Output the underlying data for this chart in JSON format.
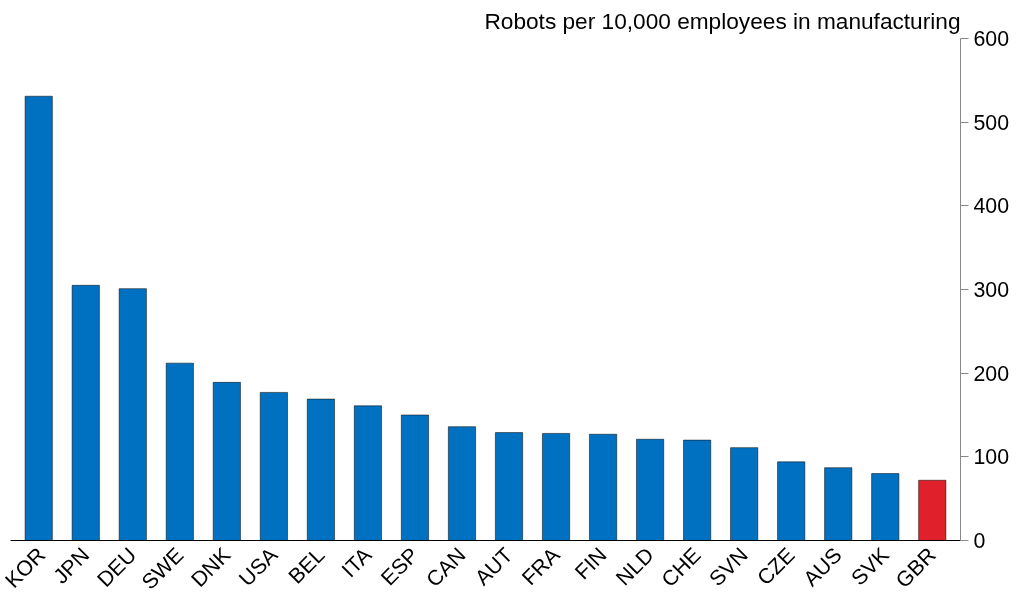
{
  "chart_data": {
    "type": "bar",
    "title": "Robots per 10,000 employees in manufacturing",
    "categories": [
      "KOR",
      "JPN",
      "DEU",
      "SWE",
      "DNK",
      "USA",
      "BEL",
      "ITA",
      "ESP",
      "CAN",
      "AUT",
      "FRA",
      "FIN",
      "NLD",
      "CHE",
      "SVN",
      "CZE",
      "AUS",
      "SVK",
      "GBR"
    ],
    "values": [
      531,
      305,
      301,
      212,
      189,
      177,
      169,
      161,
      150,
      136,
      129,
      128,
      127,
      121,
      120,
      111,
      94,
      87,
      80,
      72
    ],
    "colors": [
      "#0070c0",
      "#0070c0",
      "#0070c0",
      "#0070c0",
      "#0070c0",
      "#0070c0",
      "#0070c0",
      "#0070c0",
      "#0070c0",
      "#0070c0",
      "#0070c0",
      "#0070c0",
      "#0070c0",
      "#0070c0",
      "#0070c0",
      "#0070c0",
      "#0070c0",
      "#0070c0",
      "#0070c0",
      "#e0202a"
    ],
    "ylim": [
      0,
      600
    ],
    "yticks": [
      0,
      100,
      200,
      300,
      400,
      500,
      600
    ],
    "grid": false
  }
}
